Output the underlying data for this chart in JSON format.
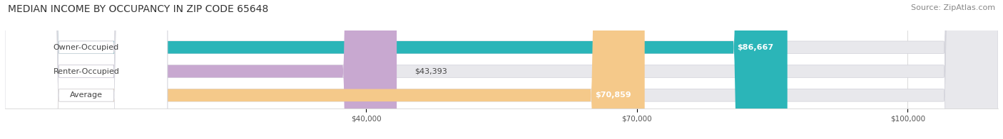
{
  "title": "MEDIAN INCOME BY OCCUPANCY IN ZIP CODE 65648",
  "source": "Source: ZipAtlas.com",
  "categories": [
    "Owner-Occupied",
    "Renter-Occupied",
    "Average"
  ],
  "values": [
    86667,
    43393,
    70859
  ],
  "labels": [
    "$86,667",
    "$43,393",
    "$70,859"
  ],
  "bar_colors": [
    "#2bb5b8",
    "#c8a8d0",
    "#f5c98a"
  ],
  "bar_bg_color": "#e8e8ec",
  "xmin": 0,
  "xmax": 110000,
  "xticks": [
    40000,
    70000,
    100000
  ],
  "xtick_labels": [
    "$40,000",
    "$70,000",
    "$100,000"
  ],
  "title_fontsize": 10,
  "source_fontsize": 8,
  "label_fontsize": 8,
  "category_fontsize": 8,
  "bar_height": 0.52,
  "bg_color": "#ffffff"
}
